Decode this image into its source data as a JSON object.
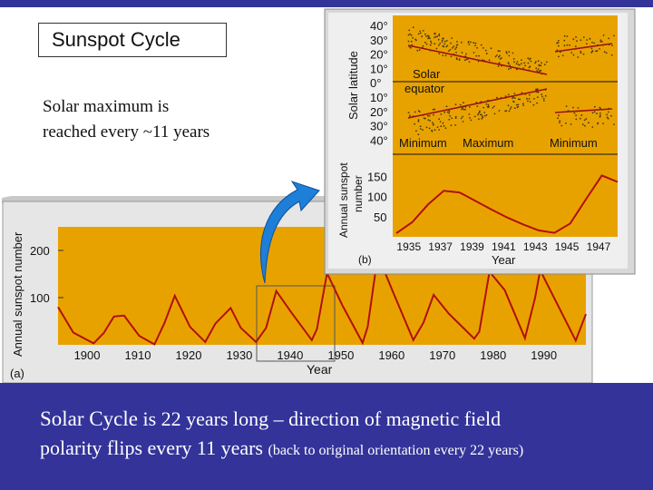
{
  "title_box": {
    "text": "Sunspot Cycle"
  },
  "intro": {
    "line1": "Solar maximum is",
    "line2": "reached every ~11 years"
  },
  "caption": {
    "part1": "Solar Cycle",
    "part2": " is 22 years long – direction of magnetic field",
    "part3": "polarity flips every 11 years ",
    "part4": "(back to original orientation every 22 years)"
  },
  "colors": {
    "background_band": "#33339a",
    "plot_fill": "#e8a200",
    "curve": "#b01010",
    "panel_gray": "#e6e6e6"
  },
  "chart_data": [
    {
      "type": "line",
      "panel_label": "(a)",
      "xlabel": "Year",
      "ylabel": "Annual sunspot number",
      "x_ticks": [
        "1900",
        "1910",
        "1920",
        "1930",
        "1940",
        "1950",
        "1960",
        "1970",
        "1980",
        "1990"
      ],
      "y_ticks": [
        "100",
        "200"
      ],
      "xlim": [
        1894,
        1998
      ],
      "ylim": [
        0,
        250
      ],
      "series": [
        {
          "x": [
            1894,
            1897,
            1901,
            1903,
            1905,
            1907,
            1910,
            1913,
            1915,
            1917,
            1920,
            1923,
            1925,
            1928,
            1930,
            1933,
            1935,
            1937,
            1940,
            1944,
            1945,
            1947,
            1950,
            1954,
            1955,
            1957,
            1960,
            1964,
            1966,
            1968,
            1971,
            1976,
            1977,
            1979,
            1982,
            1986,
            1988,
            1989,
            1992,
            1996,
            1998
          ],
          "y": [
            80,
            26,
            3,
            25,
            60,
            62,
            19,
            1,
            47,
            104,
            38,
            6,
            45,
            78,
            36,
            6,
            36,
            114,
            68,
            10,
            33,
            152,
            84,
            4,
            38,
            190,
            112,
            10,
            47,
            106,
            66,
            13,
            28,
            155,
            116,
            14,
            100,
            158,
            94,
            9,
            65
          ]
        }
      ]
    },
    {
      "type": "scatter",
      "panel_label": "(b)",
      "ylabel": "Solar latitude",
      "y_ticks": [
        "40°",
        "30°",
        "20°",
        "10°",
        "0°",
        "10°",
        "20°",
        "30°",
        "40°"
      ],
      "annotations": [
        "Solar",
        "equator",
        "Minimum",
        "Maximum",
        "Minimum"
      ]
    },
    {
      "type": "line",
      "xlabel": "Year",
      "ylabel": "Annual sunspot number",
      "x_ticks": [
        "1935",
        "1937",
        "1939",
        "1941",
        "1943",
        "1945",
        "1947"
      ],
      "y_ticks": [
        "50",
        "100",
        "150"
      ],
      "xlim": [
        1934,
        1948
      ],
      "ylim": [
        0,
        200
      ],
      "series": [
        {
          "x": [
            1934,
            1935,
            1936,
            1937,
            1938,
            1939,
            1940,
            1941,
            1942,
            1943,
            1944,
            1945,
            1946,
            1947,
            1948
          ],
          "y": [
            9,
            36,
            80,
            114,
            110,
            89,
            68,
            48,
            31,
            16,
            10,
            33,
            93,
            152,
            136
          ]
        }
      ]
    }
  ]
}
